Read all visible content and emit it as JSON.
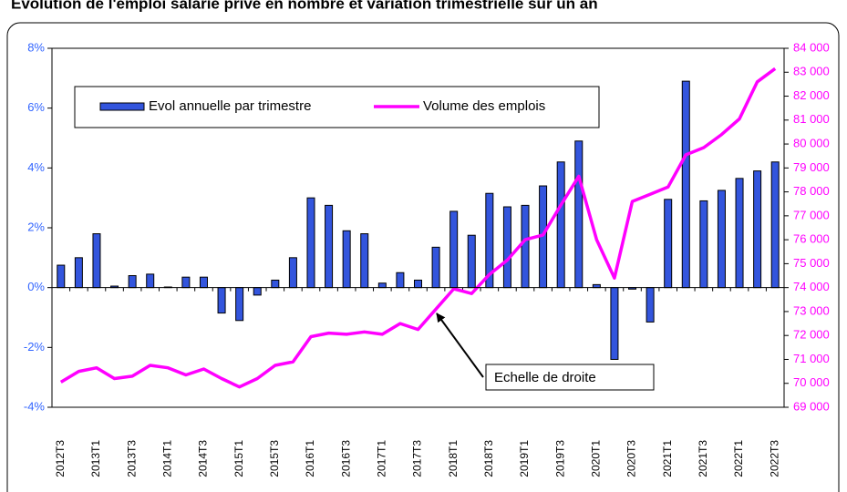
{
  "chart_data": {
    "type": "bar",
    "title": "Evolution de l'emploi salarié privé en nombre et variation trimestrielle sur un an",
    "annotation": "Echelle de droite",
    "categories": [
      "2012T3",
      null,
      "2013T1",
      null,
      "2013T3",
      null,
      "2014T1",
      null,
      "2014T3",
      null,
      "2015T1",
      null,
      "2015T3",
      null,
      "2016T1",
      null,
      "2016T3",
      null,
      "2017T1",
      null,
      "2017T3",
      null,
      "2018T1",
      null,
      "2018T3",
      null,
      "2019T1",
      null,
      "2019T3",
      null,
      "2020T1",
      null,
      "2020T3",
      null,
      "2021T1",
      null,
      "2021T3",
      null,
      "2022T1",
      null,
      "2022T3"
    ],
    "series": [
      {
        "name": "Evol annuelle par trimestre",
        "type": "bar",
        "color": "#3355dd",
        "values": [
          0.75,
          1.0,
          1.8,
          0.05,
          0.4,
          0.45,
          0.02,
          0.35,
          0.35,
          -0.85,
          -1.1,
          -0.25,
          0.25,
          1.0,
          3.0,
          2.75,
          1.9,
          1.8,
          0.15,
          0.5,
          0.25,
          1.35,
          2.55,
          1.75,
          3.15,
          2.7,
          2.75,
          3.4,
          4.2,
          4.9,
          0.1,
          -2.4,
          -0.05,
          -1.15,
          2.95,
          6.9,
          2.9,
          3.25,
          3.65,
          3.9,
          4.2
        ]
      },
      {
        "name": "Volume des emplois",
        "type": "line",
        "axis": "y2",
        "color": "#ff00ff",
        "values": [
          70050,
          70500,
          70650,
          70200,
          70300,
          70750,
          70650,
          70350,
          70600,
          70200,
          69850,
          70200,
          70750,
          70900,
          71950,
          72100,
          72050,
          72150,
          72050,
          72500,
          72250,
          73100,
          73950,
          73750,
          74550,
          75150,
          76000,
          76200,
          77450,
          78650,
          76000,
          74400,
          77600,
          77900,
          78200,
          79550,
          79850,
          80400,
          81050,
          82600,
          83150
        ]
      }
    ],
    "ylim": [
      -4,
      8
    ],
    "yticks": [
      {
        "value": -4,
        "label": "-4%"
      },
      {
        "value": -2,
        "label": "-2%"
      },
      {
        "value": 0,
        "label": "0%"
      },
      {
        "value": 2,
        "label": "2%"
      },
      {
        "value": 4,
        "label": "4%"
      },
      {
        "value": 6,
        "label": "6%"
      },
      {
        "value": 8,
        "label": "8%"
      }
    ],
    "y2lim": [
      69000,
      84000
    ],
    "y2ticks": [
      {
        "value": 69000,
        "label": "69 000"
      },
      {
        "value": 70000,
        "label": "70 000"
      },
      {
        "value": 71000,
        "label": "71 000"
      },
      {
        "value": 72000,
        "label": "72 000"
      },
      {
        "value": 73000,
        "label": "73 000"
      },
      {
        "value": 74000,
        "label": "74 000"
      },
      {
        "value": 75000,
        "label": "75 000"
      },
      {
        "value": 76000,
        "label": "76 000"
      },
      {
        "value": 77000,
        "label": "77 000"
      },
      {
        "value": 78000,
        "label": "78 000"
      },
      {
        "value": 79000,
        "label": "79 000"
      },
      {
        "value": 80000,
        "label": "80 000"
      },
      {
        "value": 81000,
        "label": "81 000"
      },
      {
        "value": 82000,
        "label": "82 000"
      },
      {
        "value": 83000,
        "label": "83 000"
      },
      {
        "value": 84000,
        "label": "84 000"
      }
    ],
    "yaxis_color": "#3366ff",
    "y2axis_color": "#ff00ff",
    "grid": false
  }
}
